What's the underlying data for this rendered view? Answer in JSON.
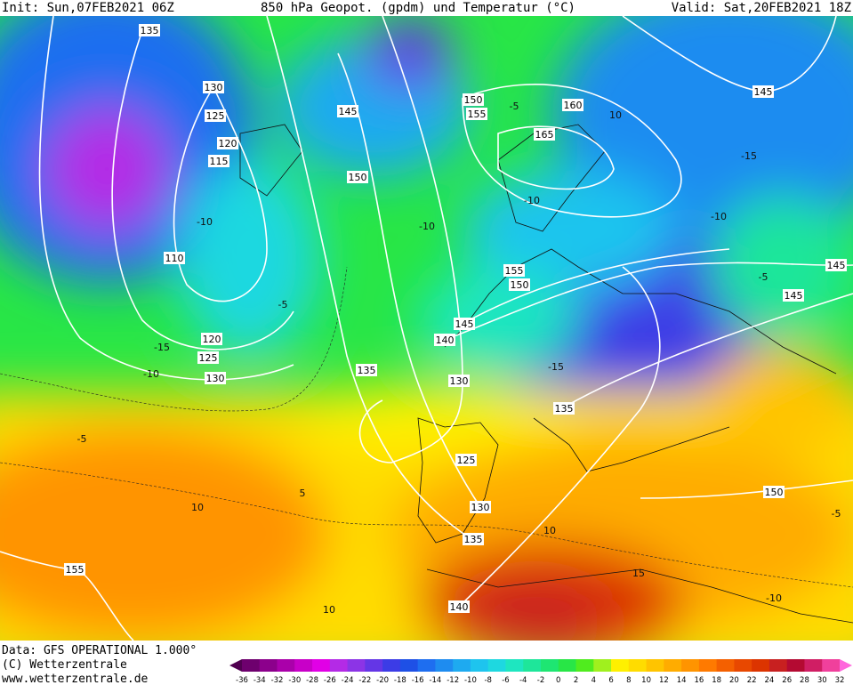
{
  "header": {
    "init": "Init: Sun,07FEB2021 06Z",
    "title": "850 hPa Geopot. (gpdm) und Temperatur (°C)",
    "valid": "Valid: Sat,20FEB2021 18Z"
  },
  "footer": {
    "data": "Data: GFS OPERATIONAL 1.000°",
    "copyright": "(C) Wetterzentrale",
    "url": "www.wetterzentrale.de"
  },
  "geopotential_labels": [
    135,
    130,
    125,
    120,
    115,
    145,
    150,
    155,
    160,
    165,
    150,
    110,
    155,
    150,
    145,
    140,
    120,
    125,
    130,
    135,
    130,
    135,
    125,
    130,
    135,
    140,
    155,
    150,
    145,
    145,
    145
  ],
  "temperature_labels": [
    -10,
    -15,
    -10,
    -5,
    -5,
    5,
    10,
    10,
    15,
    -10,
    -5,
    -15,
    -10,
    -15,
    -5,
    -10,
    -5,
    10,
    -10,
    10
  ],
  "color_scale": {
    "values": [
      -36,
      -34,
      -32,
      -30,
      -28,
      -26,
      -24,
      -22,
      -20,
      -18,
      -16,
      -14,
      -12,
      -10,
      -8,
      -6,
      -4,
      -2,
      0,
      2,
      4,
      6,
      8,
      10,
      12,
      14,
      16,
      18,
      20,
      22,
      24,
      26,
      28,
      30,
      32
    ],
    "colors": [
      "#500050",
      "#6e006e",
      "#8c008c",
      "#aa00aa",
      "#c800c8",
      "#e100e6",
      "#b42ae6",
      "#8c34e6",
      "#6436e6",
      "#3c3ce6",
      "#1e50e6",
      "#1e6ef0",
      "#1e8cf0",
      "#1eaaf0",
      "#1ec4ee",
      "#1ed8e0",
      "#1ee6c0",
      "#1ee69a",
      "#1ee672",
      "#28e646",
      "#50ec1e",
      "#a0f01e",
      "#fff000",
      "#ffdc00",
      "#ffc400",
      "#ffac00",
      "#ff9400",
      "#ff7a00",
      "#f46000",
      "#e84800",
      "#dc3400",
      "#c82020",
      "#b40a32",
      "#d01e64",
      "#f0409c",
      "#ff66dc"
    ]
  }
}
